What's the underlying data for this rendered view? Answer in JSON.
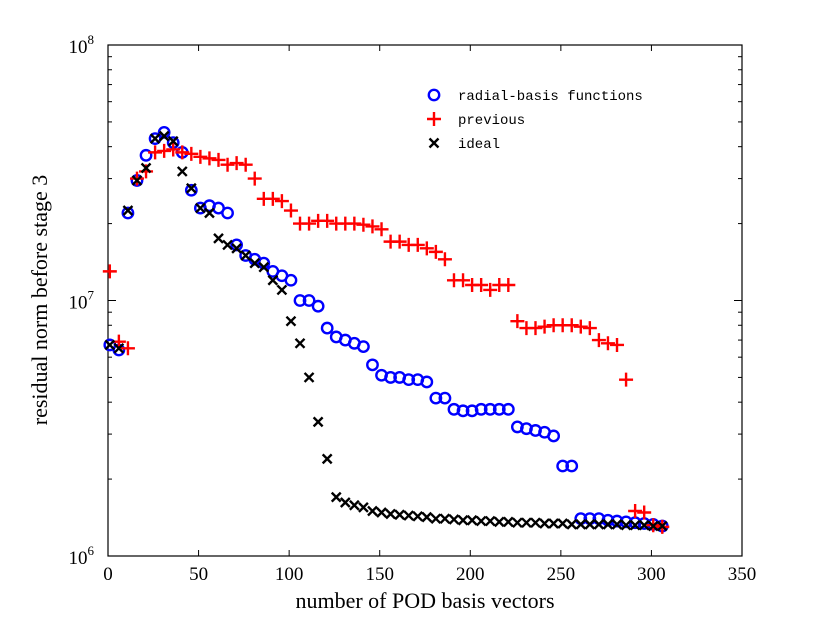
{
  "chart_data": {
    "type": "scatter",
    "title": "",
    "xlabel": "number of POD basis vectors",
    "ylabel": "residual norm before stage 3",
    "xlim": [
      0,
      350
    ],
    "ylim_log10": [
      6,
      8
    ],
    "x_ticks": [
      0,
      50,
      100,
      150,
      200,
      250,
      300,
      350
    ],
    "y_ticks": [
      {
        "base": "10",
        "exp": "6",
        "value": 1000000
      },
      {
        "base": "10",
        "exp": "7",
        "value": 10000000
      },
      {
        "base": "10",
        "exp": "8",
        "value": 100000000
      }
    ],
    "y_scale": "log",
    "legend_position": "top-right",
    "series": [
      {
        "name": "radial-basis functions",
        "marker": "circle",
        "color": "#0000ff",
        "points": [
          [
            1,
            6700000
          ],
          [
            6,
            6400000
          ],
          [
            11,
            22000000
          ],
          [
            16,
            29500000
          ],
          [
            21,
            37000000
          ],
          [
            26,
            43000000
          ],
          [
            31,
            45500000
          ],
          [
            36,
            41500000
          ],
          [
            41,
            38000000
          ],
          [
            46,
            27000000
          ],
          [
            51,
            23000000
          ],
          [
            56,
            23500000
          ],
          [
            61,
            23000000
          ],
          [
            66,
            22000000
          ],
          [
            71,
            16500000
          ],
          [
            76,
            15000000
          ],
          [
            81,
            14500000
          ],
          [
            86,
            14000000
          ],
          [
            91,
            13000000
          ],
          [
            96,
            12500000
          ],
          [
            101,
            12000000
          ],
          [
            106,
            10000000
          ],
          [
            111,
            10000000
          ],
          [
            116,
            9500000
          ],
          [
            121,
            7800000
          ],
          [
            126,
            7200000
          ],
          [
            131,
            7000000
          ],
          [
            136,
            6800000
          ],
          [
            141,
            6600000
          ],
          [
            146,
            5600000
          ],
          [
            151,
            5100000
          ],
          [
            156,
            5000000
          ],
          [
            161,
            5000000
          ],
          [
            166,
            4900000
          ],
          [
            171,
            4900000
          ],
          [
            176,
            4800000
          ],
          [
            181,
            4150000
          ],
          [
            186,
            4150000
          ],
          [
            191,
            3750000
          ],
          [
            196,
            3700000
          ],
          [
            201,
            3700000
          ],
          [
            206,
            3750000
          ],
          [
            211,
            3750000
          ],
          [
            216,
            3750000
          ],
          [
            221,
            3750000
          ],
          [
            226,
            3200000
          ],
          [
            231,
            3150000
          ],
          [
            236,
            3100000
          ],
          [
            241,
            3050000
          ],
          [
            246,
            2950000
          ],
          [
            251,
            2250000
          ],
          [
            256,
            2250000
          ],
          [
            261,
            1400000
          ],
          [
            266,
            1400000
          ],
          [
            271,
            1400000
          ],
          [
            276,
            1380000
          ],
          [
            281,
            1370000
          ],
          [
            286,
            1360000
          ],
          [
            291,
            1350000
          ],
          [
            296,
            1340000
          ],
          [
            301,
            1330000
          ],
          [
            306,
            1310000
          ]
        ]
      },
      {
        "name": "previous",
        "marker": "plus",
        "color": "#ff0000",
        "points": [
          [
            1,
            13000000
          ],
          [
            6,
            6900000
          ],
          [
            11,
            6500000
          ],
          [
            16,
            30000000
          ],
          [
            21,
            32000000
          ],
          [
            26,
            38000000
          ],
          [
            31,
            38500000
          ],
          [
            36,
            39000000
          ],
          [
            41,
            38000000
          ],
          [
            46,
            37500000
          ],
          [
            51,
            36500000
          ],
          [
            56,
            36000000
          ],
          [
            61,
            35500000
          ],
          [
            66,
            34000000
          ],
          [
            71,
            34500000
          ],
          [
            76,
            34000000
          ],
          [
            81,
            30000000
          ],
          [
            86,
            25000000
          ],
          [
            91,
            25000000
          ],
          [
            96,
            24500000
          ],
          [
            101,
            22500000
          ],
          [
            106,
            20000000
          ],
          [
            111,
            20000000
          ],
          [
            116,
            20500000
          ],
          [
            121,
            20500000
          ],
          [
            126,
            20000000
          ],
          [
            131,
            20000000
          ],
          [
            136,
            20000000
          ],
          [
            141,
            19800000
          ],
          [
            146,
            19500000
          ],
          [
            151,
            19000000
          ],
          [
            156,
            17000000
          ],
          [
            161,
            17000000
          ],
          [
            166,
            16500000
          ],
          [
            171,
            16500000
          ],
          [
            176,
            16000000
          ],
          [
            181,
            15500000
          ],
          [
            186,
            14500000
          ],
          [
            191,
            12000000
          ],
          [
            196,
            12000000
          ],
          [
            201,
            11500000
          ],
          [
            206,
            11500000
          ],
          [
            211,
            11000000
          ],
          [
            216,
            11500000
          ],
          [
            221,
            11500000
          ],
          [
            226,
            8300000
          ],
          [
            231,
            7800000
          ],
          [
            236,
            7800000
          ],
          [
            241,
            7900000
          ],
          [
            246,
            8000000
          ],
          [
            251,
            8000000
          ],
          [
            256,
            8000000
          ],
          [
            261,
            7900000
          ],
          [
            266,
            7800000
          ],
          [
            271,
            7000000
          ],
          [
            276,
            6800000
          ],
          [
            281,
            6700000
          ],
          [
            286,
            4900000
          ],
          [
            291,
            1500000
          ],
          [
            296,
            1480000
          ],
          [
            301,
            1320000
          ],
          [
            306,
            1300000
          ]
        ]
      },
      {
        "name": "ideal",
        "marker": "x",
        "color": "#000000",
        "points": [
          [
            1,
            6700000
          ],
          [
            6,
            6500000
          ],
          [
            11,
            22500000
          ],
          [
            16,
            29500000
          ],
          [
            21,
            33000000
          ],
          [
            26,
            43000000
          ],
          [
            31,
            44000000
          ],
          [
            36,
            42000000
          ],
          [
            41,
            32000000
          ],
          [
            46,
            27500000
          ],
          [
            51,
            23000000
          ],
          [
            56,
            22000000
          ],
          [
            61,
            17500000
          ],
          [
            66,
            16500000
          ],
          [
            71,
            16000000
          ],
          [
            76,
            15000000
          ],
          [
            81,
            14000000
          ],
          [
            86,
            13500000
          ],
          [
            91,
            12000000
          ],
          [
            96,
            11000000
          ],
          [
            101,
            8300000
          ],
          [
            106,
            6800000
          ],
          [
            111,
            5000000
          ],
          [
            116,
            3350000
          ],
          [
            121,
            2400000
          ],
          [
            126,
            1700000
          ],
          [
            131,
            1620000
          ],
          [
            136,
            1580000
          ],
          [
            141,
            1550000
          ],
          [
            146,
            1500000
          ],
          [
            151,
            1480000
          ],
          [
            156,
            1460000
          ],
          [
            161,
            1450000
          ],
          [
            166,
            1440000
          ],
          [
            171,
            1430000
          ],
          [
            176,
            1420000
          ],
          [
            181,
            1400000
          ],
          [
            186,
            1400000
          ],
          [
            191,
            1390000
          ],
          [
            196,
            1380000
          ],
          [
            201,
            1380000
          ],
          [
            206,
            1370000
          ],
          [
            211,
            1370000
          ],
          [
            216,
            1360000
          ],
          [
            221,
            1360000
          ],
          [
            226,
            1350000
          ],
          [
            231,
            1350000
          ],
          [
            236,
            1350000
          ],
          [
            241,
            1340000
          ],
          [
            246,
            1340000
          ],
          [
            251,
            1340000
          ],
          [
            256,
            1330000
          ],
          [
            261,
            1330000
          ],
          [
            266,
            1330000
          ],
          [
            271,
            1330000
          ],
          [
            276,
            1330000
          ],
          [
            281,
            1330000
          ],
          [
            286,
            1320000
          ],
          [
            291,
            1320000
          ],
          [
            296,
            1320000
          ],
          [
            301,
            1310000
          ],
          [
            306,
            1310000
          ]
        ]
      }
    ]
  }
}
